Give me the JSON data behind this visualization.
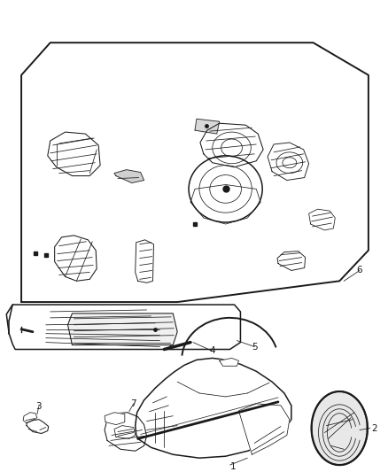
{
  "bg_color": "#ffffff",
  "line_color": "#1a1a1a",
  "figsize": [
    4.38,
    5.33
  ],
  "dpi": 100,
  "lw_main": 1.1,
  "lw_detail": 0.55,
  "lw_thin": 0.35,
  "label_fontsize": 7.5
}
